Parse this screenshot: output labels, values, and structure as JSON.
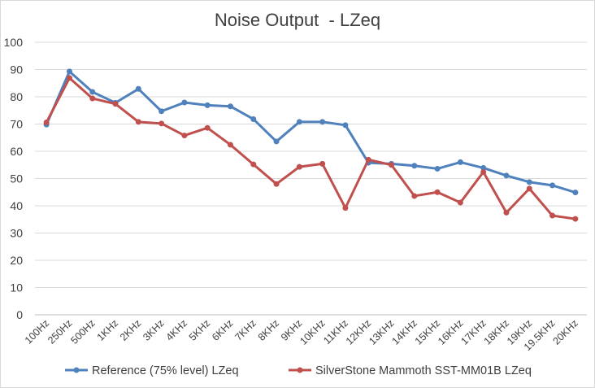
{
  "chart_data": {
    "type": "line",
    "title": "Noise Output  - LZeq",
    "xlabel": "",
    "ylabel": "",
    "ylim": [
      0,
      100
    ],
    "yticks": [
      0,
      10,
      20,
      30,
      40,
      50,
      60,
      70,
      80,
      90,
      100
    ],
    "grid": true,
    "legend": "bottom",
    "categories": [
      "100Hz",
      "250Hz",
      "500Hz",
      "1KHz",
      "2KHz",
      "3KHz",
      "4KHz",
      "5KHz",
      "6KHz",
      "7KHz",
      "8KHz",
      "9KHz",
      "10KHz",
      "11KHz",
      "12KHz",
      "13KHz",
      "14KHz",
      "15KHz",
      "16KHz",
      "17KHz",
      "18KHz",
      "19KHz",
      "19.5KHz",
      "20KHz"
    ],
    "series": [
      {
        "name": "Reference (75% level) LZeq",
        "color": "#4f81bd",
        "values": [
          69.8,
          89.3,
          81.8,
          77.8,
          82.9,
          74.7,
          77.9,
          76.9,
          76.5,
          71.8,
          63.6,
          70.8,
          70.8,
          69.6,
          55.8,
          55.4,
          54.7,
          53.6,
          56.0,
          53.9,
          51.1,
          48.7,
          47.5,
          44.9
        ]
      },
      {
        "name": "SilverStone Mammoth SST-MM01B LZeq",
        "color": "#c0504d",
        "values": [
          70.6,
          86.9,
          79.4,
          77.4,
          70.8,
          70.2,
          65.8,
          68.6,
          62.4,
          55.2,
          48.0,
          54.3,
          55.4,
          39.2,
          56.9,
          55.0,
          43.6,
          45.0,
          41.2,
          52.4,
          37.5,
          46.3,
          36.4,
          35.2
        ]
      }
    ]
  }
}
